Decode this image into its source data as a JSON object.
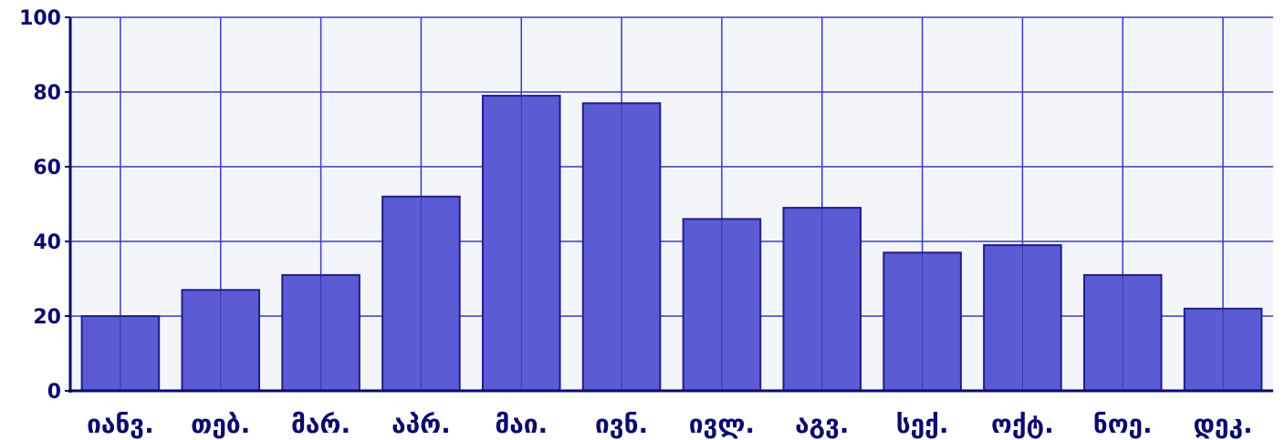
{
  "chart_data": {
    "type": "bar",
    "categories": [
      "იანვ.",
      "თებ.",
      "მარ.",
      "აპრ.",
      "მაი.",
      "ივნ.",
      "ივლ.",
      "აგვ.",
      "სექ.",
      "ოქტ.",
      "ნოე.",
      "დეკ."
    ],
    "values": [
      20,
      27,
      31,
      52,
      79,
      77,
      46,
      49,
      37,
      39,
      31,
      22
    ],
    "yticks": [
      0,
      20,
      40,
      60,
      80,
      100
    ],
    "ylim": [
      0,
      100
    ],
    "grid": true,
    "colors": {
      "bar_fill": "#5b5bd6",
      "bar_stroke": "#1f1f8a",
      "grid": "#3b3bc4",
      "axis": "#0a0a6e",
      "plot_bg": "#f4f4fb"
    }
  }
}
